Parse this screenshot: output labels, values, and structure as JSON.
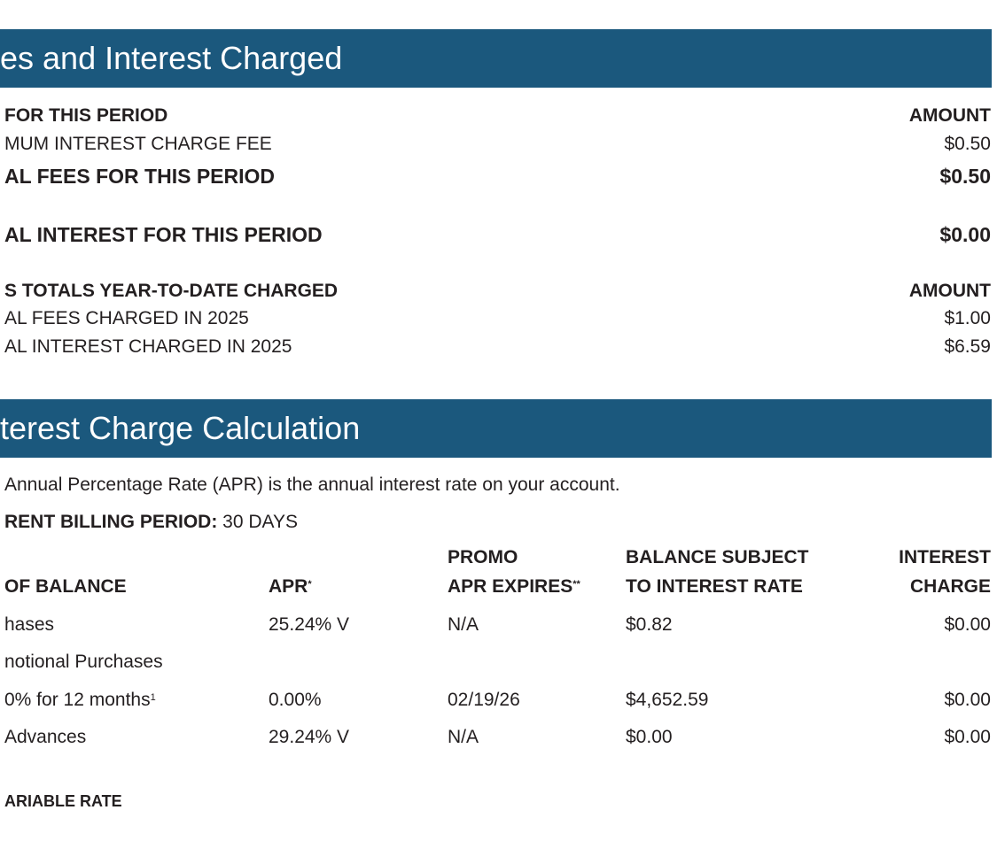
{
  "fees_section": {
    "title": "es and Interest Charged",
    "fees_header": {
      "label": "FOR THIS PERIOD",
      "amount": "AMOUNT"
    },
    "fees_rows": [
      {
        "label": "MUM INTEREST CHARGE FEE",
        "amount": "$0.50"
      }
    ],
    "total_fees": {
      "label": "AL FEES FOR THIS PERIOD",
      "amount": "$0.50"
    },
    "total_interest": {
      "label": "AL INTEREST FOR THIS PERIOD",
      "amount": "$0.00"
    },
    "ytd_header": {
      "label": "S TOTALS YEAR-TO-DATE CHARGED",
      "amount": "AMOUNT"
    },
    "ytd_rows": [
      {
        "label": "AL FEES CHARGED IN 2025",
        "amount": "$1.00"
      },
      {
        "label": "AL INTEREST CHARGED IN 2025",
        "amount": "$6.59"
      }
    ]
  },
  "interest_section": {
    "title": "terest Charge Calculation",
    "intro": "Annual Percentage Rate (APR) is the annual interest rate on your account.",
    "billing_period": {
      "label": "RENT BILLING PERIOD:",
      "value": "30 DAYS"
    },
    "table": {
      "headers": [
        {
          "lines": [
            "OF BALANCE"
          ]
        },
        {
          "lines": [
            "APR"
          ],
          "sup": "*"
        },
        {
          "lines": [
            "PROMO",
            "APR EXPIRES"
          ],
          "sup": "**"
        },
        {
          "lines": [
            "BALANCE SUBJECT",
            "TO INTEREST RATE"
          ]
        },
        {
          "lines": [
            "INTEREST",
            "CHARGE"
          ]
        }
      ],
      "rows": [
        {
          "cells": [
            "hases",
            "25.24% V",
            "N/A",
            "$0.82",
            "$0.00"
          ]
        },
        {
          "cells": [
            "notional Purchases"
          ]
        },
        {
          "cells": [
            "0% for 12 months",
            "0.00%",
            "02/19/26",
            "$4,652.59",
            "$0.00"
          ],
          "sup": "1"
        },
        {
          "cells": [
            "Advances",
            "29.24% V",
            "N/A",
            "$0.00",
            "$0.00"
          ]
        }
      ]
    },
    "footnote": "ARIABLE RATE"
  }
}
